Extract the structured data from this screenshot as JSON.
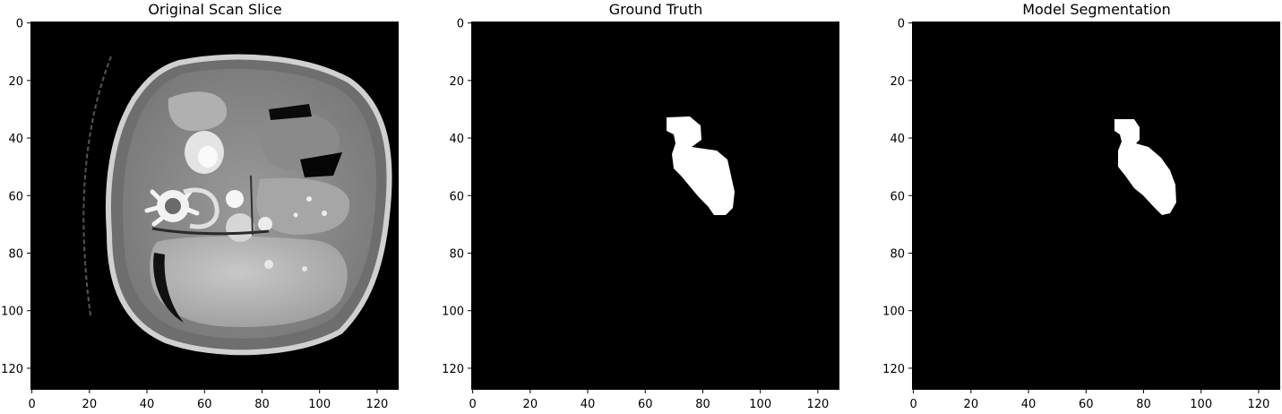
{
  "figure": {
    "panels": [
      {
        "id": "scan",
        "title": "Original Scan Slice",
        "content": "ct-slice"
      },
      {
        "id": "gt",
        "title": "Ground Truth",
        "content": "mask-ground-truth"
      },
      {
        "id": "pred",
        "title": "Model Segmentation",
        "content": "mask-prediction"
      }
    ],
    "axes": {
      "xticks": [
        "0",
        "20",
        "40",
        "60",
        "80",
        "100",
        "120"
      ],
      "yticks": [
        "0",
        "20",
        "40",
        "60",
        "80",
        "100",
        "120"
      ],
      "xtick_values": [
        0,
        20,
        40,
        60,
        80,
        100,
        120
      ],
      "ytick_values": [
        0,
        20,
        40,
        60,
        80,
        100,
        120
      ],
      "xlim": [
        -0.5,
        127.5
      ],
      "ylim": [
        127.5,
        -0.5
      ]
    },
    "colors": {
      "background": "#000000",
      "mask": "#ffffff"
    }
  }
}
